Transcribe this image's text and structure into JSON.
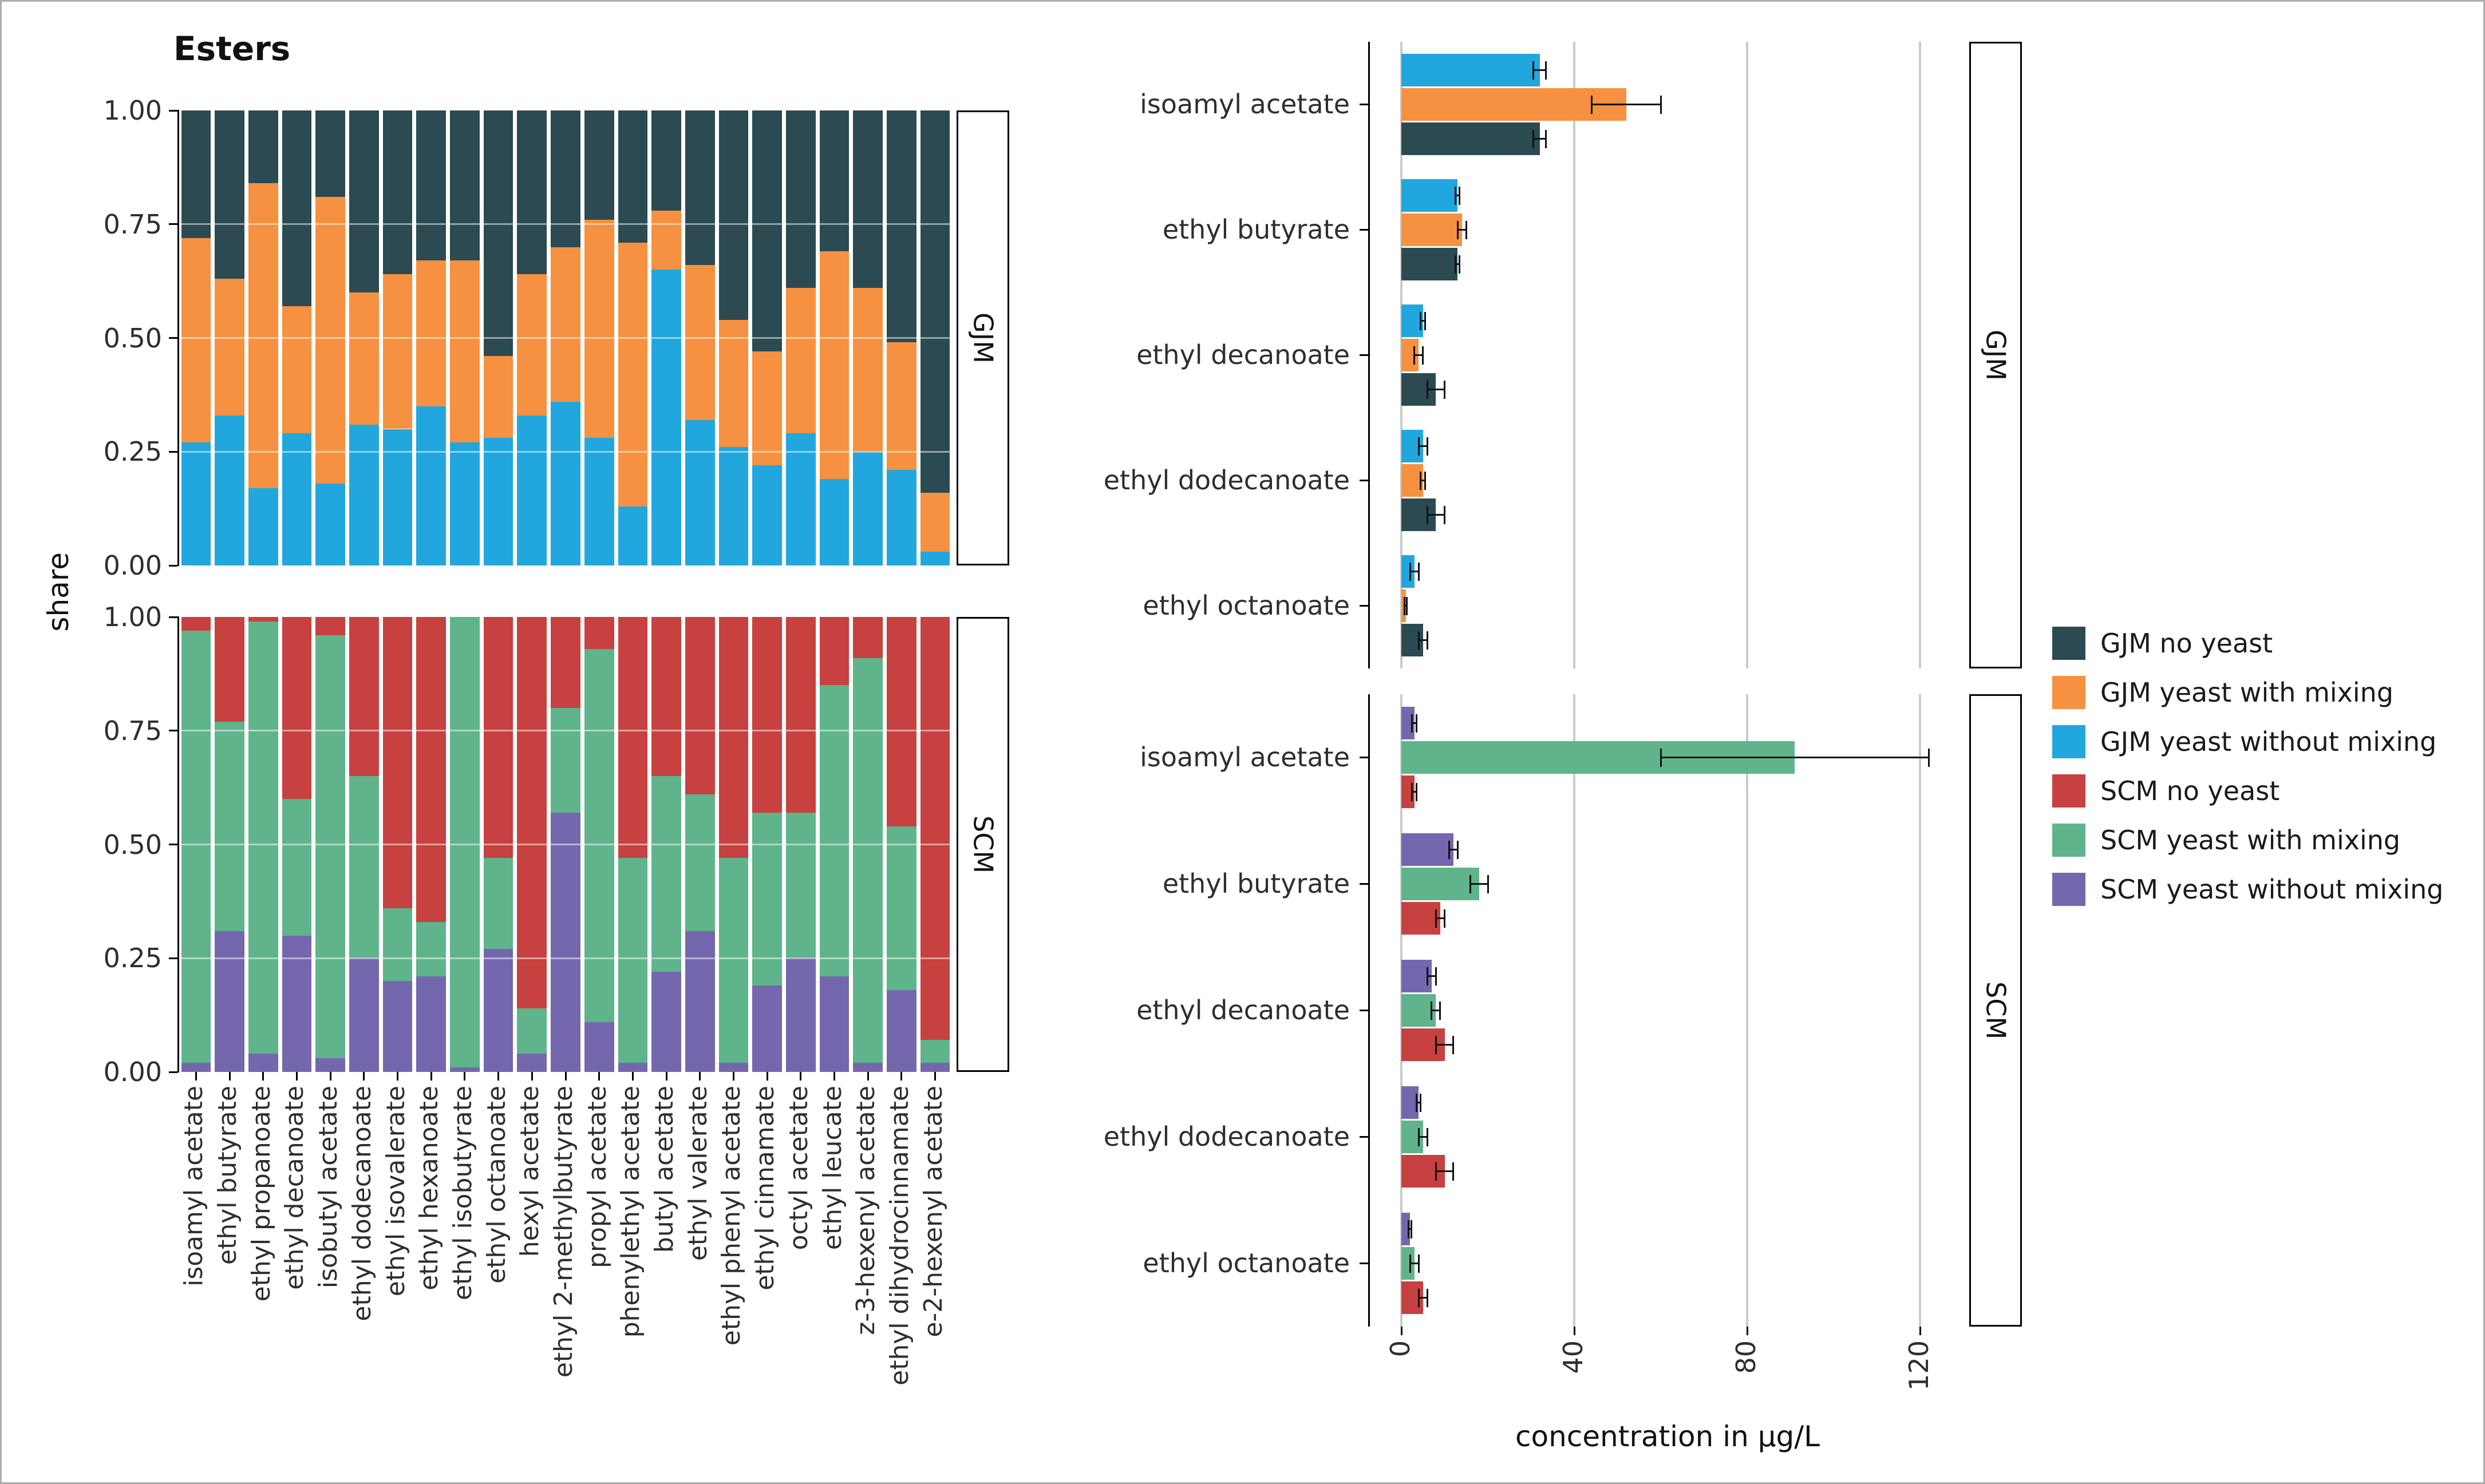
{
  "title": "Esters",
  "colors": {
    "gjm_no_yeast": "#2b4a52",
    "gjm_yeast_with_mixing": "#f59140",
    "gjm_yeast_without_mixing": "#21a7dd",
    "scm_no_yeast": "#c6413f",
    "scm_yeast_with_mixing": "#5fb48c",
    "scm_yeast_without_mixing": "#7467ad",
    "gridline": "#cbcbcb",
    "axis_line": "#000000"
  },
  "legend": {
    "position": "right",
    "items": [
      {
        "label": "GJM no yeast",
        "color_key": "gjm_no_yeast"
      },
      {
        "label": "GJM yeast with mixing",
        "color_key": "gjm_yeast_with_mixing"
      },
      {
        "label": "GJM yeast without mixing",
        "color_key": "gjm_yeast_without_mixing"
      },
      {
        "label": "SCM no yeast",
        "color_key": "scm_no_yeast"
      },
      {
        "label": "SCM yeast with mixing",
        "color_key": "scm_yeast_with_mixing"
      },
      {
        "label": "SCM yeast without mixing",
        "color_key": "scm_yeast_without_mixing"
      }
    ]
  },
  "chart_data": [
    {
      "id": "ester-share-stacked",
      "type": "bar",
      "variant": "stacked",
      "orientation": "vertical",
      "title": "Esters",
      "ylabel": "share",
      "ylim": [
        0,
        1
      ],
      "yticks": [
        1.0,
        0.75,
        0.5,
        0.25,
        0.0
      ],
      "ytick_labels": [
        "1.00",
        "0.75",
        "0.50",
        "0.25",
        "0.00"
      ],
      "grid": "horizontal white lines over bars at 0.25/0.50/0.75",
      "categories": [
        "isoamyl acetate",
        "ethyl butyrate",
        "ethyl propanoate",
        "ethyl decanoate",
        "isobutyl acetate",
        "ethyl dodecanoate",
        "ethyl isovalerate",
        "ethyl hexanoate",
        "ethyl isobutyrate",
        "ethyl octanoate",
        "hexyl acetate",
        "ethyl 2-methylbutyrate",
        "propyl acetate",
        "phenylethyl acetate",
        "butyl acetate",
        "ethyl valerate",
        "ethyl phenyl acetate",
        "ethyl cinnamate",
        "octyl acetate",
        "ethyl leucate",
        "z-3-hexenyl acetate",
        "ethyl dihydrocinnamate",
        "e-2-hexenyl acetate"
      ],
      "panels": [
        {
          "label": "GJM",
          "series": [
            {
              "name": "GJM yeast without mixing",
              "color_key": "gjm_yeast_without_mixing",
              "values": [
                0.27,
                0.33,
                0.17,
                0.29,
                0.18,
                0.31,
                0.3,
                0.35,
                0.27,
                0.28,
                0.33,
                0.36,
                0.28,
                0.13,
                0.65,
                0.32,
                0.26,
                0.22,
                0.29,
                0.19,
                0.25,
                0.21,
                0.03
              ]
            },
            {
              "name": "GJM yeast with mixing",
              "color_key": "gjm_yeast_with_mixing",
              "values": [
                0.45,
                0.3,
                0.67,
                0.28,
                0.63,
                0.29,
                0.34,
                0.32,
                0.4,
                0.18,
                0.31,
                0.34,
                0.48,
                0.58,
                0.13,
                0.34,
                0.28,
                0.25,
                0.32,
                0.5,
                0.36,
                0.28,
                0.13
              ]
            },
            {
              "name": "GJM no yeast",
              "color_key": "gjm_no_yeast",
              "values": [
                0.28,
                0.37,
                0.16,
                0.43,
                0.19,
                0.4,
                0.36,
                0.33,
                0.33,
                0.54,
                0.36,
                0.3,
                0.24,
                0.29,
                0.22,
                0.34,
                0.46,
                0.53,
                0.39,
                0.31,
                0.39,
                0.51,
                0.84
              ]
            }
          ]
        },
        {
          "label": "SCM",
          "series": [
            {
              "name": "SCM yeast without mixing",
              "color_key": "scm_yeast_without_mixing",
              "values": [
                0.02,
                0.31,
                0.04,
                0.3,
                0.03,
                0.25,
                0.2,
                0.21,
                0.01,
                0.27,
                0.04,
                0.57,
                0.11,
                0.02,
                0.22,
                0.31,
                0.02,
                0.19,
                0.25,
                0.21,
                0.02,
                0.18,
                0.02
              ]
            },
            {
              "name": "SCM yeast with mixing",
              "color_key": "scm_yeast_with_mixing",
              "values": [
                0.95,
                0.46,
                0.95,
                0.3,
                0.93,
                0.4,
                0.16,
                0.12,
                0.99,
                0.2,
                0.1,
                0.23,
                0.82,
                0.45,
                0.43,
                0.3,
                0.45,
                0.38,
                0.32,
                0.64,
                0.89,
                0.36,
                0.05
              ]
            },
            {
              "name": "SCM no yeast",
              "color_key": "scm_no_yeast",
              "values": [
                0.03,
                0.23,
                0.01,
                0.4,
                0.04,
                0.35,
                0.64,
                0.67,
                0.0,
                0.53,
                0.86,
                0.2,
                0.07,
                0.53,
                0.35,
                0.39,
                0.53,
                0.43,
                0.43,
                0.15,
                0.09,
                0.46,
                0.93
              ]
            }
          ]
        }
      ]
    },
    {
      "id": "ester-concentration",
      "type": "bar",
      "variant": "grouped",
      "orientation": "horizontal",
      "xlabel": "concentration in µg/L",
      "xlim": [
        0,
        130
      ],
      "xticks": [
        0,
        40,
        80,
        120
      ],
      "xtick_labels": [
        "0",
        "40",
        "80",
        "120"
      ],
      "error_bars": true,
      "categories": [
        "isoamyl acetate",
        "ethyl butyrate",
        "ethyl decanoate",
        "ethyl dodecanoate",
        "ethyl octanoate"
      ],
      "panels": [
        {
          "label": "GJM",
          "series": [
            {
              "name": "GJM yeast without mixing",
              "color_key": "gjm_yeast_without_mixing",
              "values": [
                32,
                13,
                5,
                5,
                3
              ],
              "errors": [
                1.5,
                0.5,
                0.5,
                1,
                1
              ]
            },
            {
              "name": "GJM yeast with mixing",
              "color_key": "gjm_yeast_with_mixing",
              "values": [
                52,
                14,
                4,
                5,
                1
              ],
              "errors": [
                8,
                1,
                1,
                0.5,
                0.3
              ]
            },
            {
              "name": "GJM no yeast",
              "color_key": "gjm_no_yeast",
              "values": [
                32,
                13,
                8,
                8,
                5
              ],
              "errors": [
                1.5,
                0.5,
                2,
                2,
                1
              ]
            }
          ]
        },
        {
          "label": "SCM",
          "series": [
            {
              "name": "SCM yeast without mixing",
              "color_key": "scm_yeast_without_mixing",
              "values": [
                3,
                12,
                7,
                4,
                2
              ],
              "errors": [
                0.5,
                1,
                1,
                0.5,
                0.3
              ]
            },
            {
              "name": "SCM yeast with mixing",
              "color_key": "scm_yeast_with_mixing",
              "values": [
                91,
                18,
                8,
                5,
                3
              ],
              "errors": [
                31,
                2,
                1,
                1,
                1
              ]
            },
            {
              "name": "SCM no yeast",
              "color_key": "scm_no_yeast",
              "values": [
                3,
                9,
                10,
                10,
                5
              ],
              "errors": [
                0.5,
                1,
                2,
                2,
                1
              ]
            }
          ]
        }
      ]
    }
  ]
}
